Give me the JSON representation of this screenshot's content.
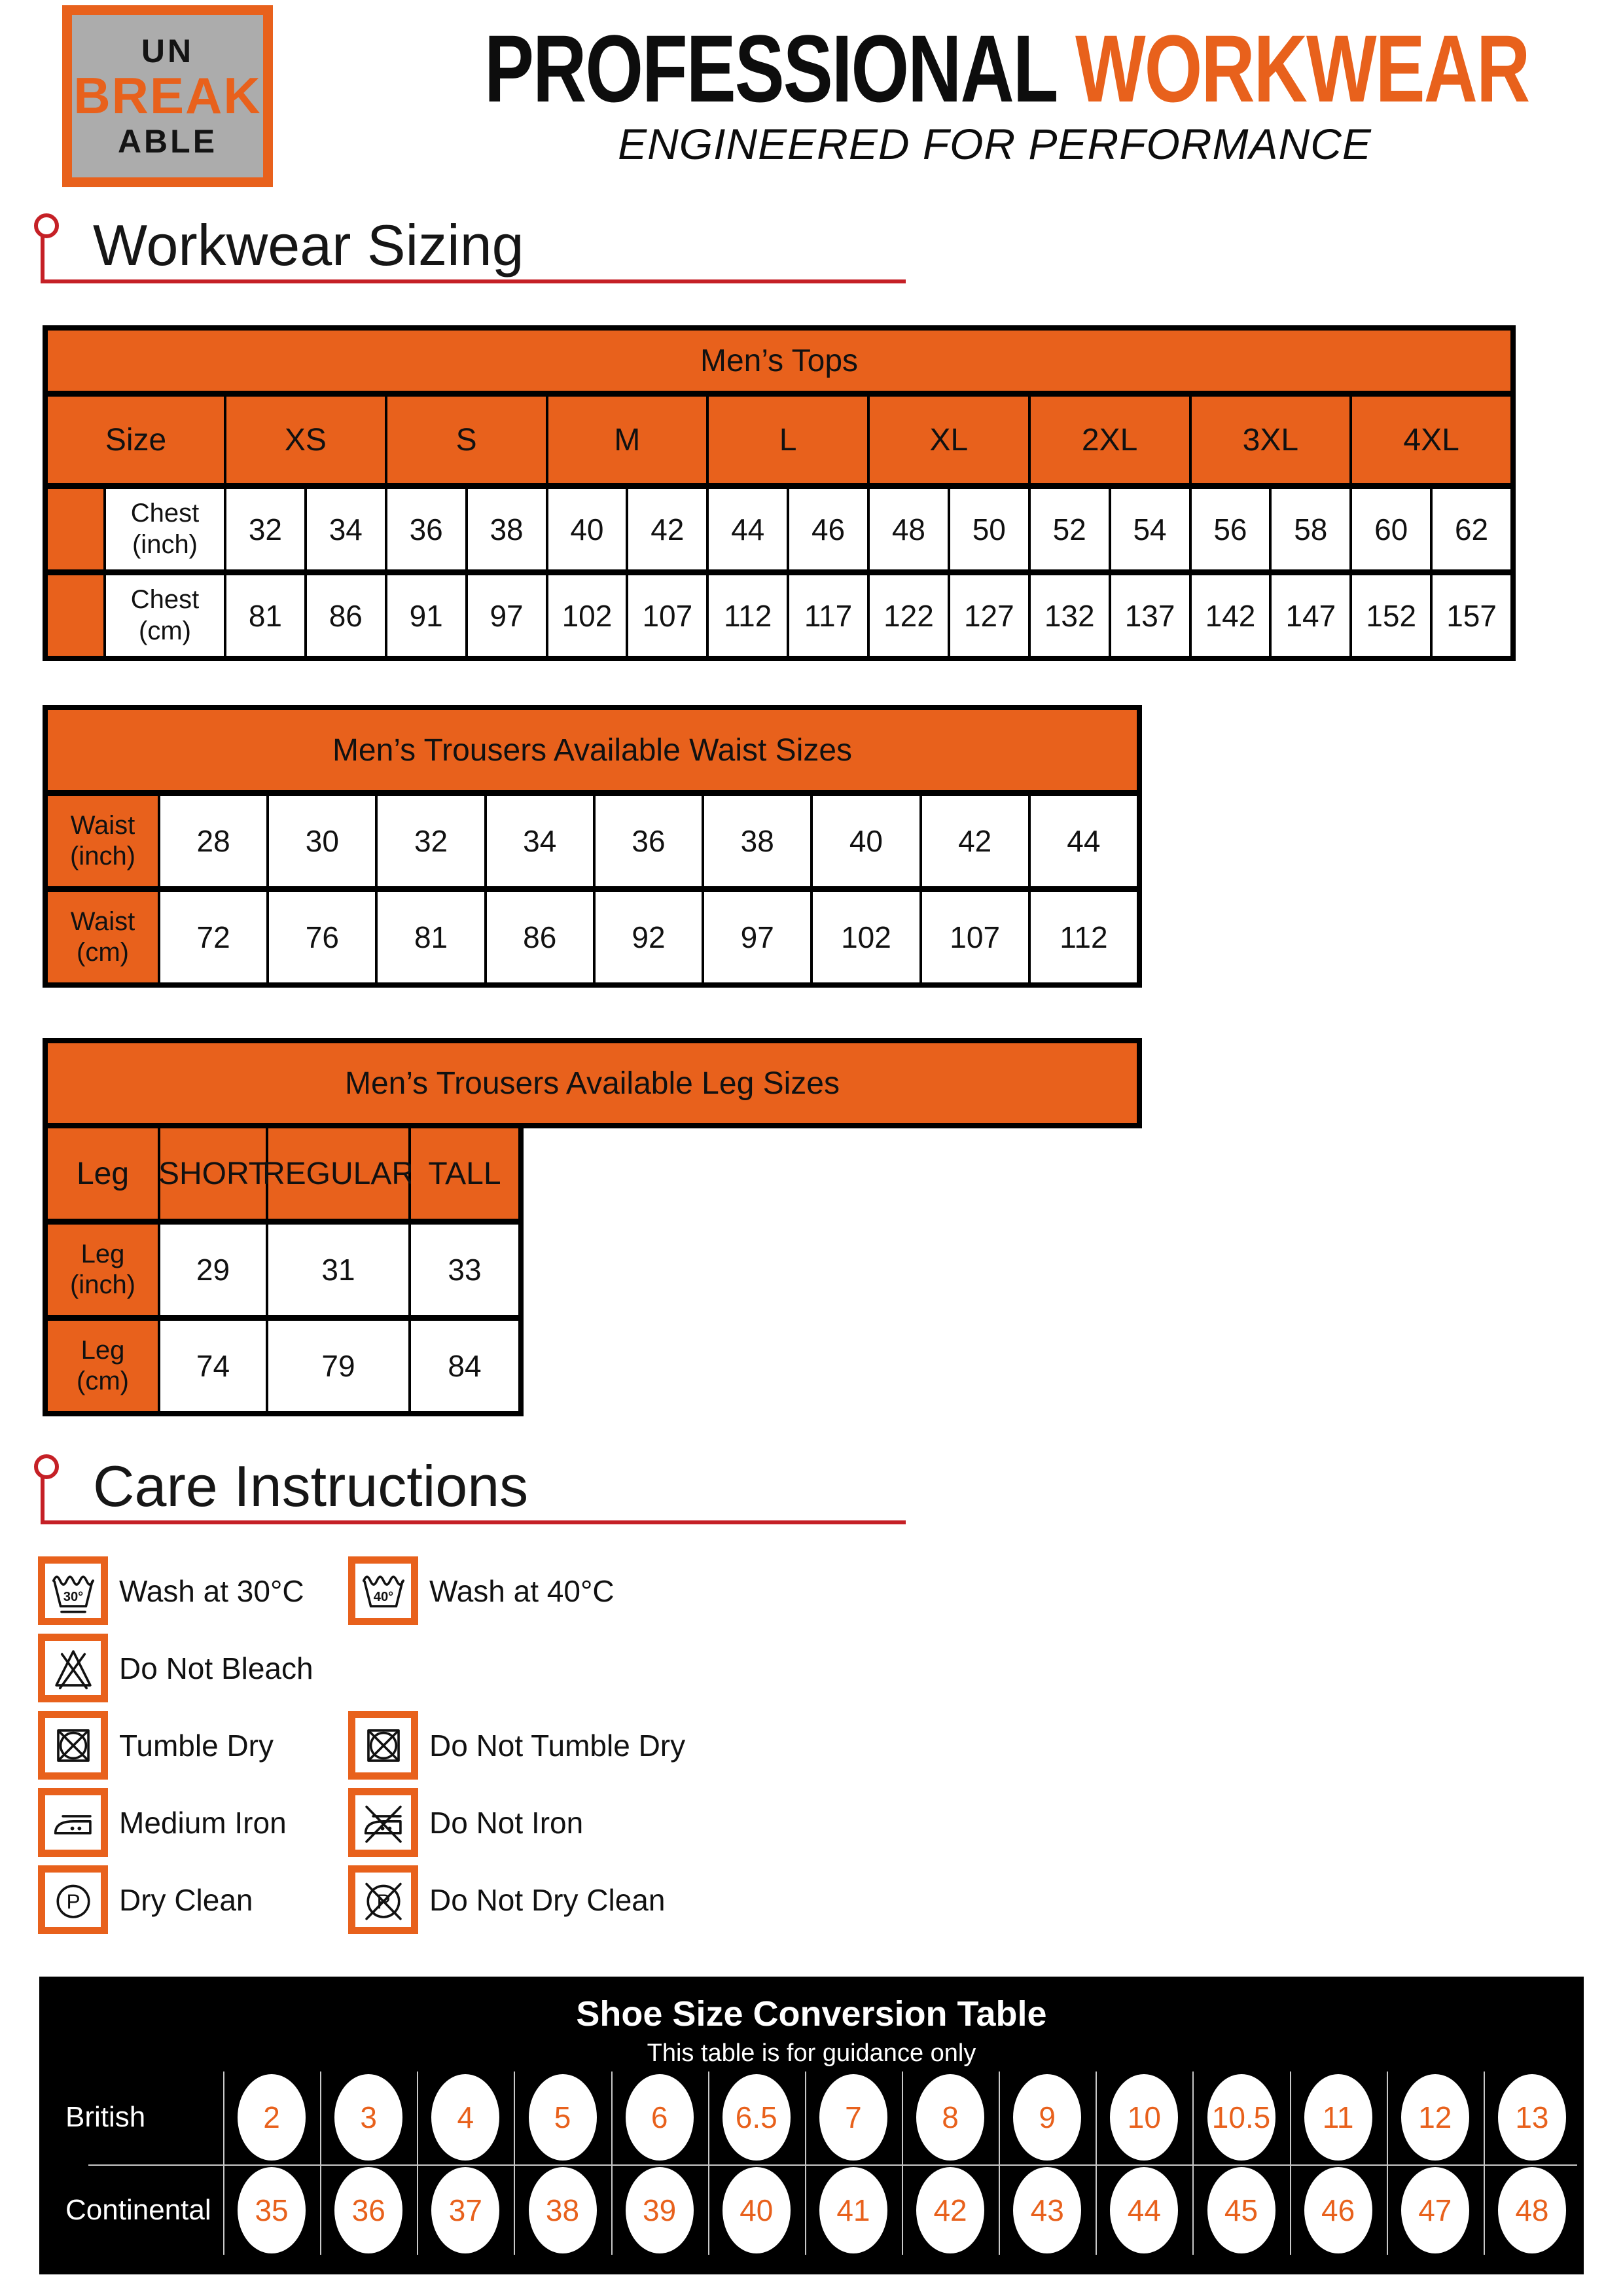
{
  "brand": {
    "logo_line1": "UN",
    "logo_line2": "BREAK",
    "logo_line3": "ABLE",
    "title_black": "PROFESSIONAL",
    "title_orange": "WORKWEAR",
    "subtitle": "ENGINEERED FOR PERFORMANCE"
  },
  "colors": {
    "orange": "#E8611C",
    "red": "#C52026",
    "black": "#000000",
    "logo_gray": "#ACACAC",
    "line_gray": "#C8C8C8",
    "shoe_number": "#E8611C"
  },
  "sizing_section": {
    "heading": "Workwear Sizing"
  },
  "tops_table": {
    "title": "Men’s Tops",
    "size_label": "Size",
    "sizes": [
      "XS",
      "S",
      "M",
      "L",
      "XL",
      "2XL",
      "3XL",
      "4XL"
    ],
    "rows": [
      {
        "label": "Chest\n(inch)",
        "values": [
          "32",
          "34",
          "36",
          "38",
          "40",
          "42",
          "44",
          "46",
          "48",
          "50",
          "52",
          "54",
          "56",
          "58",
          "60",
          "62"
        ]
      },
      {
        "label": "Chest\n(cm)",
        "values": [
          "81",
          "86",
          "91",
          "97",
          "102",
          "107",
          "112",
          "117",
          "122",
          "127",
          "132",
          "137",
          "142",
          "147",
          "152",
          "157"
        ]
      }
    ]
  },
  "waist_table": {
    "title": "Men’s Trousers Available Waist Sizes",
    "rows": [
      {
        "label": "Waist\n(inch)",
        "values": [
          "28",
          "30",
          "32",
          "34",
          "36",
          "38",
          "40",
          "42",
          "44"
        ]
      },
      {
        "label": "Waist\n(cm)",
        "values": [
          "72",
          "76",
          "81",
          "86",
          "92",
          "97",
          "102",
          "107",
          "112"
        ]
      }
    ]
  },
  "leg_table": {
    "title": "Men’s Trousers Available Leg Sizes",
    "col_headers": [
      "Leg",
      "SHORT",
      "REGULAR",
      "TALL"
    ],
    "rows": [
      {
        "label": "Leg\n(inch)",
        "values": [
          "29",
          "31",
          "33"
        ]
      },
      {
        "label": "Leg\n(cm)",
        "values": [
          "74",
          "79",
          "84"
        ]
      }
    ]
  },
  "care_section": {
    "heading": "Care Instructions",
    "left_items": [
      {
        "icon": "wash-30-icon",
        "label": "Wash at 30°C",
        "symbol_text": "30°"
      },
      {
        "icon": "do-not-bleach-icon",
        "label": "Do Not Bleach"
      },
      {
        "icon": "tumble-dry-icon",
        "label": "Tumble Dry"
      },
      {
        "icon": "medium-iron-icon",
        "label": "Medium Iron"
      },
      {
        "icon": "dry-clean-icon",
        "label": "Dry Clean"
      }
    ],
    "right_items": [
      {
        "icon": "wash-40-icon",
        "label": "Wash at 40°C",
        "symbol_text": "40°"
      },
      null,
      {
        "icon": "do-not-tumble-dry-icon",
        "label": "Do Not Tumble Dry"
      },
      {
        "icon": "do-not-iron-icon",
        "label": "Do Not Iron"
      },
      {
        "icon": "do-not-dry-clean-icon",
        "label": "Do Not Dry Clean"
      }
    ]
  },
  "shoe_table": {
    "title": "Shoe Size Conversion Table",
    "subtitle": "This table is for guidance only",
    "rows": [
      {
        "label": "British",
        "values": [
          "2",
          "3",
          "4",
          "5",
          "6",
          "6.5",
          "7",
          "8",
          "9",
          "10",
          "10.5",
          "11",
          "12",
          "13"
        ]
      },
      {
        "label": "Continental",
        "values": [
          "35",
          "36",
          "37",
          "38",
          "39",
          "40",
          "41",
          "42",
          "43",
          "44",
          "45",
          "46",
          "47",
          "48"
        ]
      }
    ]
  }
}
